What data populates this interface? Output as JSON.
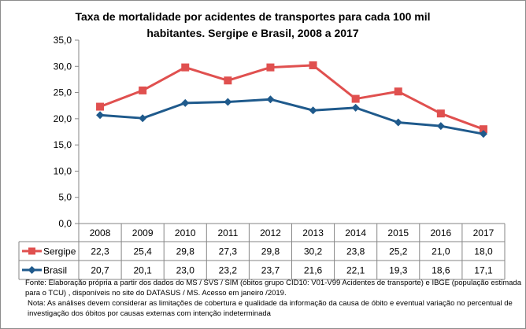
{
  "chart_data": {
    "type": "line",
    "title": "Taxa de mortalidade por acidentes de transportes para cada 100 mil habitantes. Sergipe e Brasil, 2008 a 2017",
    "categories": [
      "2008",
      "2009",
      "2010",
      "2011",
      "2012",
      "2013",
      "2014",
      "2015",
      "2016",
      "2017"
    ],
    "ylim": [
      0,
      35
    ],
    "yticks": [
      "0,0",
      "5,0",
      "10,0",
      "15,0",
      "20,0",
      "25,0",
      "30,0",
      "35,0"
    ],
    "grid": false,
    "legend": "data-table",
    "series": [
      {
        "name": "Sergipe",
        "color": "#E0504F",
        "marker": "square",
        "values": [
          22.3,
          25.4,
          29.8,
          27.3,
          29.8,
          30.2,
          23.8,
          25.2,
          21.0,
          18.0
        ],
        "labels": [
          "22,3",
          "25,4",
          "29,8",
          "27,3",
          "29,8",
          "30,2",
          "23,8",
          "25,2",
          "21,0",
          "18,0"
        ]
      },
      {
        "name": "Brasil",
        "color": "#1F5A8C",
        "marker": "diamond",
        "values": [
          20.7,
          20.1,
          23.0,
          23.2,
          23.7,
          21.6,
          22.1,
          19.3,
          18.6,
          17.1
        ],
        "labels": [
          "20,7",
          "20,1",
          "23,0",
          "23,2",
          "23,7",
          "21,6",
          "22,1",
          "19,3",
          "18,6",
          "17,1"
        ]
      }
    ]
  },
  "notes": {
    "source": "Fonte: Elaboração própria a partir dos dados do MS / SVS / SIM (óbitos grupo CID10: V01-V99 Acidentes de transporte) e IBGE (população estimada para o TCU) , disponíveis no site do DATASUS / MS. Acesso em janeiro /2019.",
    "note": "Nota:  As análises devem considerar as limitações de cobertura e qualidade da informação da causa de óbito e eventual variação no percentual de investigação dos óbitos  por causas externas com intenção  indeterminada"
  }
}
